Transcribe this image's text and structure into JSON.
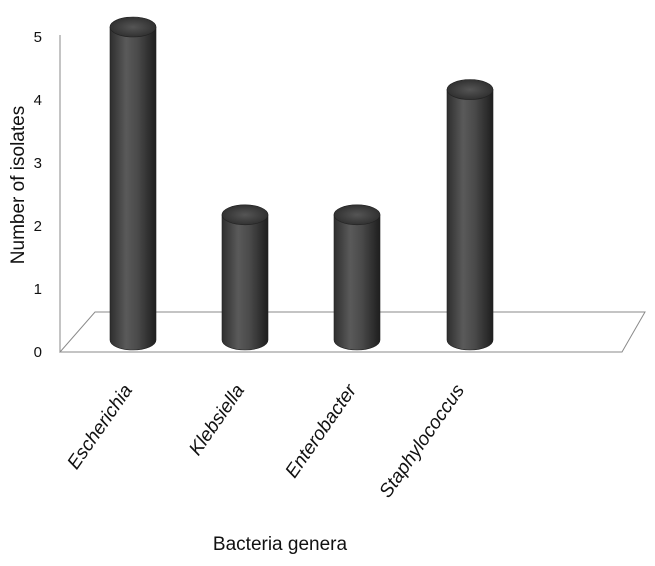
{
  "chart_data": {
    "type": "bar",
    "categories": [
      "Escherichia",
      "Klebsiella",
      "Enterobacter",
      "Staphylococcus"
    ],
    "values": [
      5,
      2,
      2,
      4
    ],
    "xlabel": "Bacteria genera",
    "ylabel": "Number of isolates",
    "ylim": [
      0,
      5
    ],
    "yticks": [
      "0",
      "1",
      "2",
      "3",
      "4",
      "5"
    ],
    "grid": false,
    "legend": "none",
    "style": "3d-cylinder",
    "bar_color": "#4a4a4a"
  }
}
